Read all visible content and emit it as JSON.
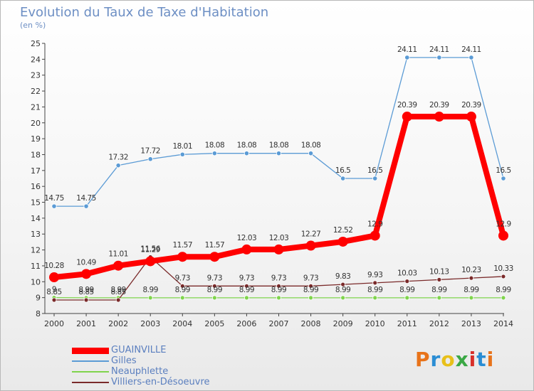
{
  "header": {
    "title": "Evolution du Taux de Taxe d'Habitation",
    "subtitle": "(en %)"
  },
  "logo": {
    "text": "Proxiti",
    "colors": [
      "#e8731a",
      "#2a8dd4",
      "#e8c01a",
      "#3aa845",
      "#d8302a",
      "#2a8dd4",
      "#e8731a"
    ]
  },
  "chart_data": {
    "type": "line",
    "title": "Evolution du Taux de Taxe d'Habitation",
    "ylabel": "(en %)",
    "x": [
      2000,
      2001,
      2002,
      2003,
      2004,
      2005,
      2006,
      2007,
      2008,
      2009,
      2010,
      2011,
      2012,
      2013,
      2014
    ],
    "ylim": [
      8,
      25
    ],
    "yticks": [
      8,
      9,
      10,
      11,
      12,
      13,
      14,
      15,
      16,
      17,
      18,
      19,
      20,
      21,
      22,
      23,
      24,
      25
    ],
    "grid": false,
    "legend_position": "bottom-left",
    "series": [
      {
        "name": "GUAINVILLE",
        "color": "#ff0000",
        "values": [
          10.28,
          10.49,
          11.01,
          11.29,
          11.57,
          11.57,
          12.03,
          12.03,
          12.27,
          12.52,
          12.9,
          20.39,
          20.39,
          20.39,
          12.9
        ],
        "labels": [
          "10.28",
          "10.49",
          "11.01",
          "11.29",
          "11.57",
          "11.57",
          "12.03",
          "12.03",
          "12.27",
          "12.52",
          "12.9",
          "20.39",
          "20.39",
          "20.39",
          "12.9"
        ]
      },
      {
        "name": "Gilles",
        "color": "#5b9bd5",
        "values": [
          14.75,
          14.75,
          17.32,
          17.72,
          18.01,
          18.08,
          18.08,
          18.08,
          18.08,
          16.5,
          16.5,
          24.11,
          24.11,
          24.11,
          16.5
        ],
        "labels": [
          "14.75",
          "14.75",
          "17.32",
          "17.72",
          "18.01",
          "18.08",
          "18.08",
          "18.08",
          "18.08",
          "16.5",
          "16.5",
          "24.11",
          "24.11",
          "24.11",
          "16.5"
        ]
      },
      {
        "name": "Neauphlette",
        "color": "#7fd44c",
        "values": [
          9,
          8.99,
          8.99,
          8.99,
          8.99,
          8.99,
          8.99,
          8.99,
          8.99,
          8.99,
          8.99,
          8.99,
          8.99,
          8.99,
          8.99
        ],
        "labels": [
          "9",
          "8.99",
          "8.99",
          "8.99",
          "8.99",
          "8.99",
          "8.99",
          "8.99",
          "8.99",
          "8.99",
          "8.99",
          "8.99",
          "8.99",
          "8.99",
          "8.99"
        ]
      },
      {
        "name": "Villiers-en-Désoeuvre",
        "color": "#7a2a2a",
        "values": [
          8.85,
          8.85,
          8.85,
          11.56,
          9.73,
          9.73,
          9.73,
          9.73,
          9.73,
          9.83,
          9.93,
          10.03,
          10.13,
          10.23,
          10.33
        ],
        "labels": [
          "8.85",
          "8.85",
          "8.85",
          "11.56",
          "9.73",
          "9.73",
          "9.73",
          "9.73",
          "9.73",
          "9.83",
          "9.93",
          "10.03",
          "10.13",
          "10.23",
          "10.33"
        ]
      }
    ]
  }
}
